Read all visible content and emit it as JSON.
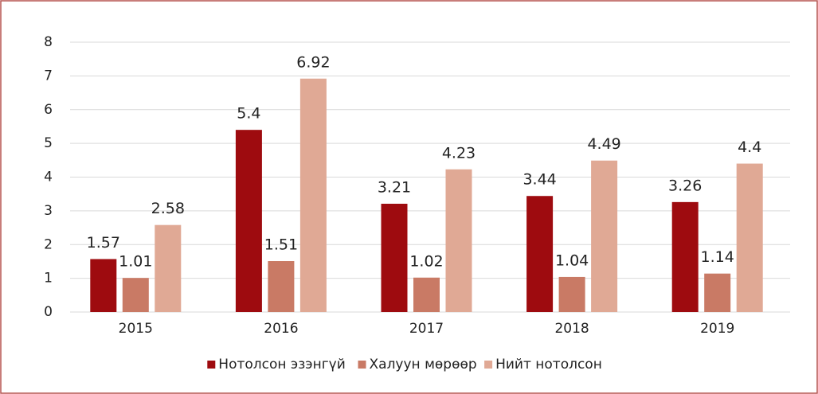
{
  "chart_data": {
    "type": "bar",
    "categories": [
      "2015",
      "2016",
      "2017",
      "2018",
      "2019"
    ],
    "series": [
      {
        "name": "Нотолсон эзэнгүй",
        "color": "#9e0b0f",
        "values": [
          1.57,
          5.4,
          3.21,
          3.44,
          3.26
        ]
      },
      {
        "name": "Халуун мөрөөр",
        "color": "#c97a65",
        "values": [
          1.01,
          1.51,
          1.02,
          1.04,
          1.14
        ]
      },
      {
        "name": "Нийт нотолсон",
        "color": "#e0a995",
        "values": [
          2.58,
          6.92,
          4.23,
          4.49,
          4.4
        ]
      }
    ],
    "ylim": [
      0,
      8
    ],
    "yticks": [
      0,
      1,
      2,
      3,
      4,
      5,
      6,
      7,
      8
    ],
    "grid": true,
    "legend": "bottom"
  }
}
